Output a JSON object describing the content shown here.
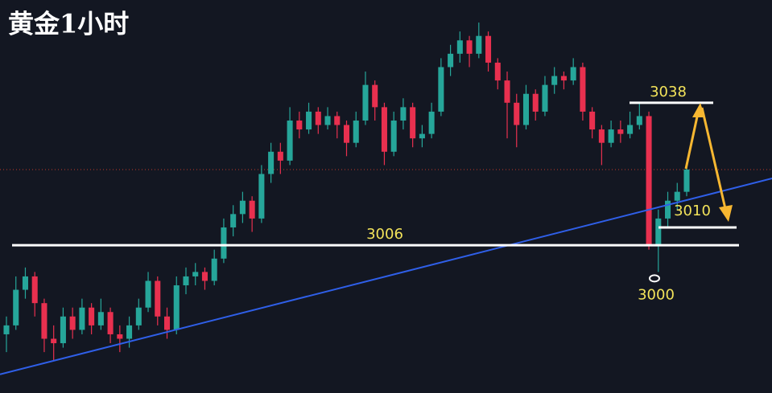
{
  "chart_data": {
    "type": "candlestick",
    "title": "黄金1小时",
    "ylim": [
      2973,
      3058
    ],
    "up_color": "#26a69a",
    "down_color": "#e8304f",
    "candles": [
      [
        2986,
        2990,
        2982,
        2988
      ],
      [
        2988,
        2999,
        2987,
        2996
      ],
      [
        2996,
        3001,
        2994,
        2999
      ],
      [
        2999,
        3000,
        2990,
        2993
      ],
      [
        2993,
        2994,
        2982,
        2985
      ],
      [
        2985,
        2988,
        2980,
        2984
      ],
      [
        2984,
        2992,
        2983,
        2990
      ],
      [
        2990,
        2992,
        2985,
        2987
      ],
      [
        2987,
        2994,
        2986,
        2992
      ],
      [
        2992,
        2993,
        2986,
        2988
      ],
      [
        2988,
        2994,
        2987,
        2991
      ],
      [
        2991,
        2992,
        2984,
        2986
      ],
      [
        2986,
        2988,
        2982,
        2985
      ],
      [
        2985,
        2990,
        2983,
        2988
      ],
      [
        2988,
        2994,
        2987,
        2992
      ],
      [
        2992,
        3000,
        2991,
        2998
      ],
      [
        2998,
        2999,
        2988,
        2990
      ],
      [
        2990,
        2992,
        2985,
        2987
      ],
      [
        2987,
        2999,
        2986,
        2997
      ],
      [
        2997,
        3001,
        2995,
        2999
      ],
      [
        2999,
        3002,
        2997,
        3000
      ],
      [
        3000,
        3001,
        2996,
        2998
      ],
      [
        2998,
        3005,
        2997,
        3003
      ],
      [
        3003,
        3012,
        3002,
        3010
      ],
      [
        3010,
        3015,
        3008,
        3013
      ],
      [
        3013,
        3018,
        3011,
        3016
      ],
      [
        3016,
        3017,
        3009,
        3012
      ],
      [
        3012,
        3024,
        3011,
        3022
      ],
      [
        3022,
        3029,
        3020,
        3027
      ],
      [
        3027,
        3029,
        3022,
        3025
      ],
      [
        3025,
        3037,
        3024,
        3034
      ],
      [
        3034,
        3036,
        3030,
        3032
      ],
      [
        3032,
        3038,
        3031,
        3036
      ],
      [
        3036,
        3037,
        3031,
        3033
      ],
      [
        3033,
        3037,
        3032,
        3035
      ],
      [
        3035,
        3036,
        3030,
        3033
      ],
      [
        3033,
        3034,
        3026,
        3029
      ],
      [
        3029,
        3036,
        3028,
        3034
      ],
      [
        3034,
        3045,
        3033,
        3042
      ],
      [
        3042,
        3043,
        3034,
        3037
      ],
      [
        3037,
        3038,
        3024,
        3027
      ],
      [
        3027,
        3036,
        3026,
        3034
      ],
      [
        3034,
        3039,
        3032,
        3037
      ],
      [
        3037,
        3038,
        3028,
        3030
      ],
      [
        3030,
        3033,
        3028,
        3031
      ],
      [
        3031,
        3038,
        3030,
        3036
      ],
      [
        3036,
        3048,
        3035,
        3046
      ],
      [
        3046,
        3051,
        3044,
        3049
      ],
      [
        3049,
        3054,
        3047,
        3052
      ],
      [
        3052,
        3053,
        3046,
        3049
      ],
      [
        3049,
        3056,
        3048,
        3053
      ],
      [
        3053,
        3054,
        3045,
        3047
      ],
      [
        3047,
        3048,
        3041,
        3043
      ],
      [
        3043,
        3045,
        3030,
        3038
      ],
      [
        3038,
        3040,
        3028,
        3033
      ],
      [
        3033,
        3042,
        3032,
        3040
      ],
      [
        3040,
        3041,
        3034,
        3036
      ],
      [
        3036,
        3044,
        3035,
        3042
      ],
      [
        3042,
        3046,
        3040,
        3044
      ],
      [
        3044,
        3045,
        3041,
        3043
      ],
      [
        3043,
        3048,
        3042,
        3046
      ],
      [
        3046,
        3047,
        3034,
        3036
      ],
      [
        3036,
        3037,
        3030,
        3032
      ],
      [
        3032,
        3033,
        3024,
        3029
      ],
      [
        3029,
        3034,
        3028,
        3032
      ],
      [
        3032,
        3034,
        3029,
        3031
      ],
      [
        3031,
        3036,
        3030,
        3033
      ],
      [
        3033,
        3038,
        3032,
        3035
      ],
      [
        3035,
        3036,
        3005,
        3006
      ],
      [
        3006,
        3014,
        3000,
        3012
      ],
      [
        3012,
        3018,
        3010,
        3016
      ],
      [
        3016,
        3020,
        3014,
        3018
      ],
      [
        3018,
        3024,
        3017,
        3023
      ]
    ],
    "last_price": 3023,
    "last_price_color": "#c0392b",
    "trendline": {
      "values": [
        2977,
        3021
      ],
      "color": "#2f5fe8"
    },
    "levels": [
      {
        "value": 3006
      },
      {
        "value": 3038
      },
      {
        "value": 3010
      }
    ],
    "low_marker": {
      "value": 3000
    }
  }
}
